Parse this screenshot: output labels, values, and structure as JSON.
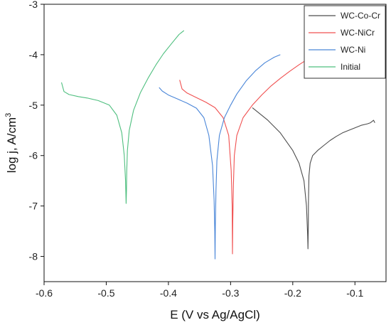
{
  "chart_data": {
    "type": "line",
    "xlabel": "E (V vs Ag/AgCl)",
    "ylabel": "log j, A/cm",
    "ylabel_sup": "3",
    "xlim": [
      -0.6,
      -0.05
    ],
    "ylim": [
      -8.5,
      -3
    ],
    "x_ticks": [
      -0.6,
      -0.5,
      -0.4,
      -0.3,
      -0.2,
      -0.1
    ],
    "x_tick_labels": [
      "-0.6",
      "-0.5",
      "-0.4",
      "-0.3",
      "-0.2",
      "-0.1"
    ],
    "y_ticks": [
      -8,
      -7,
      -6,
      -5,
      -4,
      -3
    ],
    "y_tick_labels": [
      "-8",
      "-7",
      "-6",
      "-5",
      "-4",
      "-3"
    ],
    "grid": false,
    "legend_position": "top-right",
    "series": [
      {
        "name": "WC-Co-Cr",
        "color": "#4d4d4d",
        "x": [
          -0.265,
          -0.24,
          -0.22,
          -0.2,
          -0.19,
          -0.182,
          -0.178,
          -0.176,
          -0.1755,
          -0.175,
          -0.1748,
          -0.174,
          -0.172,
          -0.168,
          -0.16,
          -0.15,
          -0.14,
          -0.13,
          -0.12,
          -0.11,
          -0.1,
          -0.09,
          -0.08,
          -0.075,
          -0.07,
          -0.068
        ],
        "y": [
          -5.05,
          -5.3,
          -5.55,
          -5.9,
          -6.15,
          -6.5,
          -7.0,
          -7.6,
          -7.85,
          -7.4,
          -6.9,
          -6.4,
          -6.15,
          -6.0,
          -5.9,
          -5.8,
          -5.7,
          -5.62,
          -5.55,
          -5.5,
          -5.45,
          -5.4,
          -5.37,
          -5.35,
          -5.3,
          -5.35
        ]
      },
      {
        "name": "WC-NiCr",
        "color": "#f05050",
        "x": [
          -0.382,
          -0.378,
          -0.37,
          -0.355,
          -0.34,
          -0.325,
          -0.312,
          -0.303,
          -0.299,
          -0.2975,
          -0.297,
          -0.2965,
          -0.2955,
          -0.294,
          -0.29,
          -0.28,
          -0.265,
          -0.25,
          -0.235,
          -0.22,
          -0.205,
          -0.19,
          -0.18,
          -0.175
        ],
        "y": [
          -4.5,
          -4.68,
          -4.76,
          -4.85,
          -4.94,
          -5.05,
          -5.25,
          -5.6,
          -6.3,
          -7.0,
          -7.95,
          -7.35,
          -6.6,
          -6.0,
          -5.6,
          -5.25,
          -5.0,
          -4.8,
          -4.62,
          -4.47,
          -4.33,
          -4.2,
          -4.12,
          -4.08
        ]
      },
      {
        "name": "WC-Ni",
        "color": "#4a86d8",
        "x": [
          -0.415,
          -0.41,
          -0.4,
          -0.385,
          -0.37,
          -0.355,
          -0.343,
          -0.335,
          -0.329,
          -0.3265,
          -0.3255,
          -0.325,
          -0.3245,
          -0.3235,
          -0.322,
          -0.318,
          -0.31,
          -0.3,
          -0.29,
          -0.275,
          -0.26,
          -0.245,
          -0.23,
          -0.22
        ],
        "y": [
          -4.65,
          -4.72,
          -4.8,
          -4.88,
          -4.96,
          -5.06,
          -5.25,
          -5.6,
          -6.2,
          -6.9,
          -7.5,
          -8.05,
          -7.4,
          -6.7,
          -6.1,
          -5.6,
          -5.25,
          -5.0,
          -4.78,
          -4.52,
          -4.32,
          -4.16,
          -4.05,
          -4.0
        ]
      },
      {
        "name": "Initial",
        "color": "#4fbf7f",
        "x": [
          -0.572,
          -0.568,
          -0.56,
          -0.545,
          -0.53,
          -0.513,
          -0.495,
          -0.483,
          -0.475,
          -0.471,
          -0.469,
          -0.468,
          -0.4675,
          -0.467,
          -0.466,
          -0.463,
          -0.456,
          -0.445,
          -0.432,
          -0.42,
          -0.408,
          -0.395,
          -0.383,
          -0.375
        ],
        "y": [
          -4.55,
          -4.73,
          -4.79,
          -4.83,
          -4.86,
          -4.91,
          -5.0,
          -5.2,
          -5.55,
          -6.0,
          -6.5,
          -6.95,
          -6.7,
          -6.3,
          -5.9,
          -5.5,
          -5.1,
          -4.75,
          -4.45,
          -4.2,
          -3.98,
          -3.78,
          -3.6,
          -3.52
        ]
      }
    ]
  }
}
